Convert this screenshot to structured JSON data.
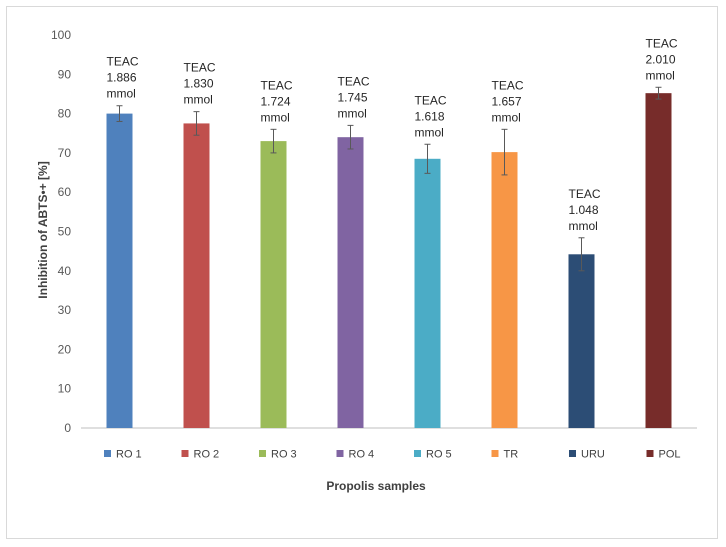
{
  "chart_data": {
    "type": "bar",
    "title": "",
    "xlabel": "Propolis samples",
    "ylabel": "Inhibition of ABTS•+ [%]",
    "ylim": [
      0,
      100
    ],
    "yticks": [
      0,
      10,
      20,
      30,
      40,
      50,
      60,
      70,
      80,
      90,
      100
    ],
    "grid": false,
    "legend_position": "bottom",
    "categories": [
      "RO 1",
      "RO 2",
      "RO 3",
      "RO 4",
      "RO 5",
      "TR",
      "URU",
      "POL"
    ],
    "values": [
      80,
      77.5,
      73,
      74,
      68.5,
      70.2,
      44.2,
      85.2
    ],
    "errors": [
      2,
      3,
      3,
      3,
      3.7,
      5.8,
      4.2,
      1.5
    ],
    "colors": [
      "#4F81BD",
      "#C0504D",
      "#9BBB59",
      "#8064A2",
      "#4BACC6",
      "#F79646",
      "#2C4D75",
      "#772C2A"
    ],
    "annotations": [
      [
        "TEAC",
        "1.886",
        "mmol"
      ],
      [
        "TEAC",
        "1.830",
        "mmol"
      ],
      [
        "TEAC",
        "1.724",
        "mmol"
      ],
      [
        "TEAC",
        "1.745",
        "mmol"
      ],
      [
        "TEAC",
        "1.618",
        "mmol"
      ],
      [
        "TEAC",
        "1.657",
        "mmol"
      ],
      [
        "TEAC",
        "1.048",
        "mmol"
      ],
      [
        "TEAC",
        "2.010",
        "mmol"
      ]
    ]
  }
}
